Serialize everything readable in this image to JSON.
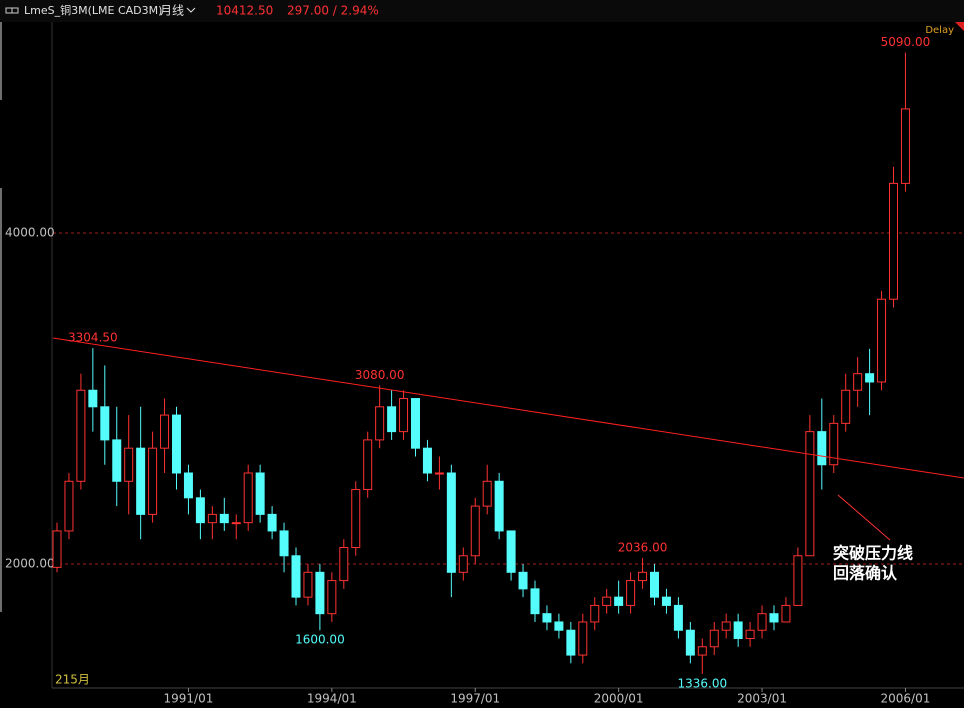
{
  "chart_data": {
    "type": "candlestick",
    "header": {
      "symbol": "LmeS_铜3M(LME CAD3M)",
      "period": "月线",
      "price": "10412.50",
      "change": "297.00 / 2.94%",
      "delay": "Delay"
    },
    "count_label": "215月",
    "x": [
      "1988/04",
      "1988/07",
      "1988/10",
      "1989/01",
      "1989/04",
      "1989/07",
      "1989/10",
      "1990/01",
      "1990/04",
      "1990/07",
      "1990/10",
      "1991/01",
      "1991/04",
      "1991/07",
      "1991/10",
      "1992/01",
      "1992/04",
      "1992/07",
      "1992/10",
      "1993/01",
      "1993/04",
      "1993/07",
      "1993/10",
      "1994/01",
      "1994/04",
      "1994/07",
      "1994/10",
      "1995/01",
      "1995/04",
      "1995/07",
      "1995/10",
      "1996/01",
      "1996/04",
      "1996/07",
      "1996/10",
      "1997/01",
      "1997/04",
      "1997/07",
      "1997/10",
      "1998/01",
      "1998/04",
      "1998/07",
      "1998/10",
      "1999/01",
      "1999/04",
      "1999/07",
      "1999/10",
      "2000/01",
      "2000/04",
      "2000/07",
      "2000/10",
      "2001/01",
      "2001/04",
      "2001/07",
      "2001/10",
      "2002/01",
      "2002/04",
      "2002/07",
      "2002/10",
      "2003/01",
      "2003/04",
      "2003/07",
      "2003/10",
      "2004/01",
      "2004/04",
      "2004/07",
      "2004/10",
      "2005/01",
      "2005/04",
      "2005/07",
      "2005/10",
      "2006/01"
    ],
    "open": [
      1980,
      2200,
      2500,
      3050,
      2950,
      2750,
      2500,
      2700,
      2300,
      2700,
      2900,
      2550,
      2400,
      2250,
      2300,
      2250,
      2250,
      2550,
      2300,
      2200,
      2050,
      1800,
      1950,
      1700,
      1900,
      2100,
      2450,
      2750,
      2950,
      2800,
      3000,
      2700,
      2550,
      2550,
      1950,
      2050,
      2350,
      2500,
      2200,
      1950,
      1850,
      1700,
      1650,
      1600,
      1450,
      1650,
      1750,
      1800,
      1750,
      1900,
      1950,
      1800,
      1750,
      1600,
      1450,
      1500,
      1600,
      1650,
      1550,
      1600,
      1700,
      1650,
      1750,
      2050,
      2800,
      2600,
      2850,
      3050,
      3150,
      3100,
      3600,
      4300
    ],
    "high": [
      2250,
      2550,
      3150,
      3304.5,
      3200,
      2950,
      2900,
      2950,
      2800,
      3000,
      2950,
      2600,
      2450,
      2350,
      2400,
      2300,
      2600,
      2600,
      2350,
      2250,
      2100,
      2000,
      2000,
      1950,
      2150,
      2500,
      2800,
      3080,
      3050,
      3050,
      3000,
      2750,
      2650,
      2600,
      2100,
      2400,
      2600,
      2550,
      2200,
      2000,
      1900,
      1750,
      1700,
      1650,
      1700,
      1800,
      1850,
      1900,
      1950,
      2036,
      2000,
      1850,
      1800,
      1650,
      1550,
      1650,
      1700,
      1700,
      1650,
      1750,
      1750,
      1800,
      2100,
      2900,
      3000,
      2900,
      3150,
      3250,
      3300,
      3650,
      4400,
      5090
    ],
    "low": [
      1950,
      2150,
      2450,
      2800,
      2600,
      2350,
      2300,
      2150,
      2250,
      2550,
      2450,
      2300,
      2150,
      2150,
      2200,
      2150,
      2200,
      2250,
      2150,
      1950,
      1750,
      1750,
      1600,
      1650,
      1850,
      2050,
      2400,
      2700,
      2750,
      2750,
      2650,
      2500,
      2450,
      1800,
      1900,
      2000,
      2300,
      2150,
      1900,
      1800,
      1650,
      1600,
      1550,
      1400,
      1400,
      1600,
      1700,
      1700,
      1700,
      1850,
      1750,
      1700,
      1550,
      1400,
      1336,
      1450,
      1550,
      1500,
      1500,
      1550,
      1600,
      1650,
      1750,
      2050,
      2450,
      2550,
      2800,
      2950,
      2900,
      3050,
      3550,
      4250
    ],
    "close": [
      2200,
      2500,
      3050,
      2950,
      2750,
      2500,
      2700,
      2300,
      2700,
      2900,
      2550,
      2400,
      2250,
      2300,
      2250,
      2250,
      2550,
      2300,
      2200,
      2050,
      1800,
      1950,
      1700,
      1900,
      2100,
      2450,
      2750,
      2950,
      2800,
      3000,
      2700,
      2550,
      2550,
      1950,
      2050,
      2350,
      2500,
      2200,
      1950,
      1850,
      1700,
      1650,
      1600,
      1450,
      1650,
      1750,
      1800,
      1750,
      1900,
      1950,
      1800,
      1750,
      1600,
      1450,
      1500,
      1600,
      1650,
      1550,
      1600,
      1700,
      1650,
      1750,
      2050,
      2800,
      2600,
      2850,
      3050,
      3150,
      3100,
      3600,
      4300,
      4750
    ],
    "up_color": "#ff3232",
    "down_color": "#54fcfc",
    "ylim": [
      1251,
      5275
    ],
    "yticks": [
      {
        "value": 2000,
        "label": "2000.00"
      },
      {
        "value": 4000,
        "label": "4000.00"
      }
    ],
    "xticks": [
      "1991/01",
      "1994/01",
      "1997/01",
      "2000/01",
      "2003/01",
      "2006/01"
    ],
    "grid": true,
    "trendline": {
      "color": "#ff2020",
      "values": [
        3366,
        2520
      ]
    },
    "annotations": [
      {
        "x": "1989/01",
        "value": 3304.5,
        "label": "3304.50",
        "color": "#ff3232"
      },
      {
        "x": "1995/01",
        "value": 3080,
        "label": "3080.00",
        "color": "#ff3232"
      },
      {
        "x": "1993/10",
        "value": 1600,
        "label": "1600.00",
        "color": "#54fcfc"
      },
      {
        "x": "2000/07",
        "value": 2036,
        "label": "2036.00",
        "color": "#ff3232"
      },
      {
        "x": "2001/10",
        "value": 1336,
        "label": "1336.00",
        "color": "#54fcfc"
      },
      {
        "x": "2006/01",
        "value": 5090,
        "label": "5090.00",
        "color": "#ff3232"
      }
    ],
    "callout": [
      "突破压力线",
      "回落确认"
    ]
  }
}
